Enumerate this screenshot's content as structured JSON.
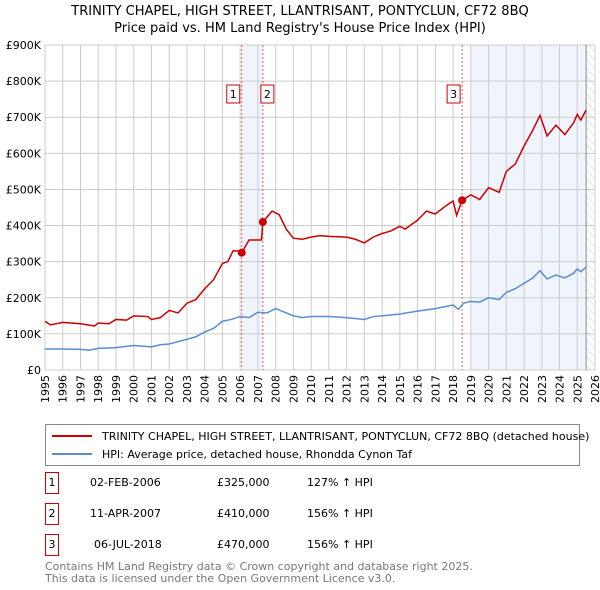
{
  "chart_data": {
    "type": "line",
    "title": "TRINITY CHAPEL, HIGH STREET, LLANTRISANT, PONTYCLUN, CF72 8BQ",
    "subtitle": "Price paid vs. HM Land Registry's House Price Index (HPI)",
    "xlim": [
      1995,
      2026
    ],
    "ylim": [
      0,
      900000
    ],
    "x_ticks": [
      "1995",
      "1996",
      "1997",
      "1998",
      "1999",
      "2000",
      "2001",
      "2002",
      "2003",
      "2004",
      "2005",
      "2006",
      "2007",
      "2008",
      "2009",
      "2010",
      "2011",
      "2012",
      "2013",
      "2014",
      "2015",
      "2016",
      "2017",
      "2018",
      "2019",
      "2020",
      "2021",
      "2022",
      "2023",
      "2024",
      "2025",
      "2026"
    ],
    "y_ticks": [
      {
        "v": 0,
        "label": "£0"
      },
      {
        "v": 100000,
        "label": "£100K"
      },
      {
        "v": 200000,
        "label": "£200K"
      },
      {
        "v": 300000,
        "label": "£300K"
      },
      {
        "v": 400000,
        "label": "£400K"
      },
      {
        "v": 500000,
        "label": "£500K"
      },
      {
        "v": 600000,
        "label": "£600K"
      },
      {
        "v": 700000,
        "label": "£700K"
      },
      {
        "v": 800000,
        "label": "£800K"
      },
      {
        "v": 900000,
        "label": "£900K"
      }
    ],
    "grid": true,
    "series": [
      {
        "name": "TRINITY CHAPEL, HIGH STREET, LLANTRISANT, PONTYCLUN, CF72 8BQ (detached house)",
        "color": "#cc0000",
        "points": [
          [
            1995,
            135
          ],
          [
            1995.3,
            125
          ],
          [
            1996,
            132
          ],
          [
            1997,
            128
          ],
          [
            1997.8,
            122
          ],
          [
            1998,
            130
          ],
          [
            1998.6,
            128
          ],
          [
            1999,
            140
          ],
          [
            1999.6,
            138
          ],
          [
            2000,
            150
          ],
          [
            2000.8,
            148
          ],
          [
            2001,
            140
          ],
          [
            2001.5,
            145
          ],
          [
            2002,
            165
          ],
          [
            2002.5,
            158
          ],
          [
            2003,
            185
          ],
          [
            2003.5,
            195
          ],
          [
            2004,
            225
          ],
          [
            2004.5,
            250
          ],
          [
            2005,
            295
          ],
          [
            2005.3,
            300
          ],
          [
            2005.6,
            330
          ],
          [
            2005.9,
            330
          ],
          [
            2006.09,
            325
          ],
          [
            2006.5,
            360
          ],
          [
            2007.2,
            360
          ],
          [
            2007.28,
            410
          ],
          [
            2007.8,
            440
          ],
          [
            2008.2,
            430
          ],
          [
            2008.6,
            390
          ],
          [
            2009,
            365
          ],
          [
            2009.5,
            362
          ],
          [
            2010,
            368
          ],
          [
            2010.5,
            372
          ],
          [
            2011,
            370
          ],
          [
            2012,
            368
          ],
          [
            2012.5,
            362
          ],
          [
            2013,
            352
          ],
          [
            2013.5,
            368
          ],
          [
            2014,
            378
          ],
          [
            2014.5,
            385
          ],
          [
            2015,
            398
          ],
          [
            2015.3,
            390
          ],
          [
            2016,
            415
          ],
          [
            2016.5,
            440
          ],
          [
            2017,
            432
          ],
          [
            2017.6,
            455
          ],
          [
            2018,
            468
          ],
          [
            2018.2,
            428
          ],
          [
            2018.51,
            470
          ],
          [
            2019,
            485
          ],
          [
            2019.5,
            472
          ],
          [
            2020,
            505
          ],
          [
            2020.6,
            492
          ],
          [
            2021,
            550
          ],
          [
            2021.5,
            570
          ],
          [
            2022,
            620
          ],
          [
            2022.5,
            665
          ],
          [
            2022.9,
            705
          ],
          [
            2023.3,
            648
          ],
          [
            2023.8,
            678
          ],
          [
            2024.3,
            652
          ],
          [
            2024.8,
            685
          ],
          [
            2025,
            708
          ],
          [
            2025.2,
            692
          ],
          [
            2025.5,
            720
          ]
        ]
      },
      {
        "name": "HPI: Average price, detached house, Rhondda Cynon Taf",
        "color": "#5b8bd0",
        "points": [
          [
            1995,
            58
          ],
          [
            1996,
            58
          ],
          [
            1997,
            57
          ],
          [
            1997.5,
            55
          ],
          [
            1998,
            60
          ],
          [
            1999,
            62
          ],
          [
            2000,
            68
          ],
          [
            2001,
            64
          ],
          [
            2001.5,
            70
          ],
          [
            2002,
            72
          ],
          [
            2003,
            85
          ],
          [
            2003.5,
            92
          ],
          [
            2004,
            105
          ],
          [
            2004.5,
            115
          ],
          [
            2005,
            135
          ],
          [
            2005.5,
            140
          ],
          [
            2006,
            148
          ],
          [
            2006.5,
            145
          ],
          [
            2007,
            160
          ],
          [
            2007.5,
            158
          ],
          [
            2008,
            170
          ],
          [
            2008.5,
            160
          ],
          [
            2009,
            150
          ],
          [
            2009.5,
            145
          ],
          [
            2010,
            148
          ],
          [
            2011,
            148
          ],
          [
            2012,
            145
          ],
          [
            2013,
            140
          ],
          [
            2013.5,
            148
          ],
          [
            2014,
            150
          ],
          [
            2015,
            155
          ],
          [
            2016,
            163
          ],
          [
            2017,
            170
          ],
          [
            2018,
            180
          ],
          [
            2018.3,
            168
          ],
          [
            2018.6,
            185
          ],
          [
            2019,
            190
          ],
          [
            2019.5,
            188
          ],
          [
            2020,
            200
          ],
          [
            2020.6,
            195
          ],
          [
            2021,
            215
          ],
          [
            2021.5,
            225
          ],
          [
            2022,
            240
          ],
          [
            2022.5,
            255
          ],
          [
            2022.9,
            275
          ],
          [
            2023.3,
            252
          ],
          [
            2023.8,
            263
          ],
          [
            2024.3,
            255
          ],
          [
            2024.8,
            268
          ],
          [
            2025,
            280
          ],
          [
            2025.2,
            272
          ],
          [
            2025.5,
            285
          ]
        ]
      }
    ],
    "sales": [
      {
        "id": "1",
        "x": 2006.09,
        "price": 325000,
        "date": "02-FEB-2006",
        "price_label": "£325,000",
        "hpi": "127% ↑ HPI"
      },
      {
        "id": "2",
        "x": 2007.28,
        "price": 410000,
        "date": "11-APR-2007",
        "price_label": "£410,000",
        "hpi": "156% ↑ HPI"
      },
      {
        "id": "3",
        "x": 2018.51,
        "price": 470000,
        "date": "06-JUL-2018",
        "price_label": "£470,000",
        "hpi": "156% ↑ HPI"
      }
    ],
    "shaded_ranges": [
      [
        2006.09,
        2007.28
      ],
      [
        2019.0,
        2025.5
      ]
    ],
    "hatched_from": 2025.5
  },
  "footer": {
    "line1": "Contains HM Land Registry data © Crown copyright and database right 2025.",
    "line2": "This data is licensed under the Open Government Licence v3.0."
  }
}
